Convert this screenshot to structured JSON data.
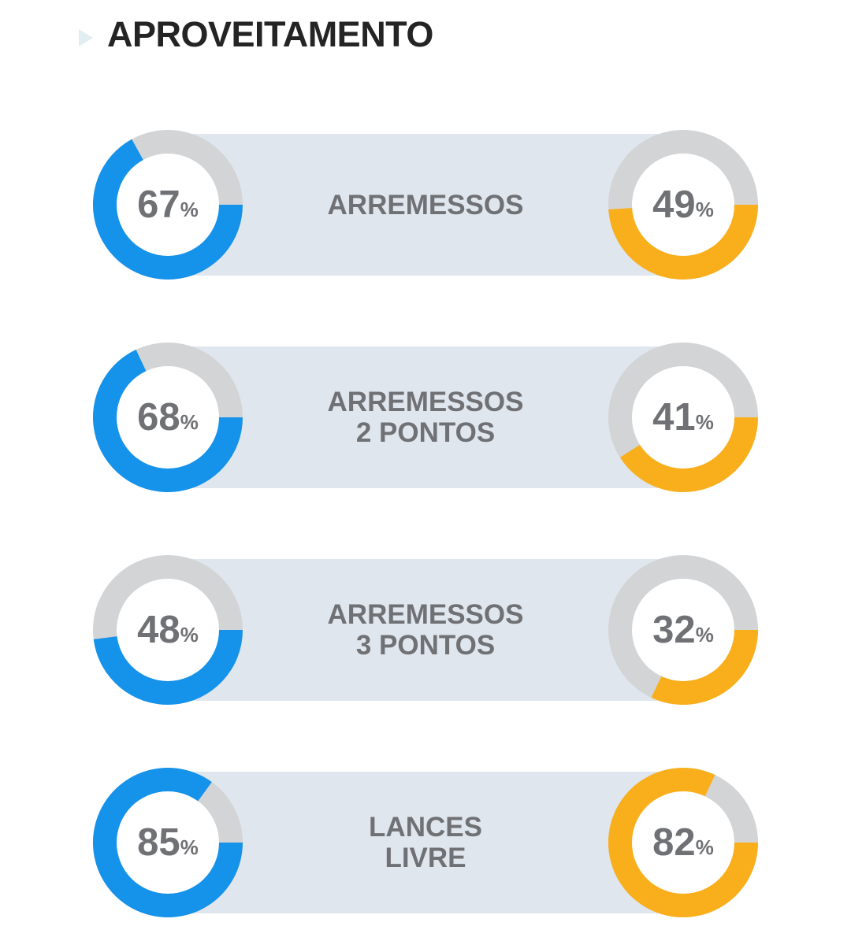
{
  "header": {
    "title": "APROVEITAMENTO"
  },
  "colors": {
    "team_a": "#1592e9",
    "team_b": "#f9af1c",
    "track": "#d3d4d6",
    "band": "#dfe6ee",
    "text": "#707174"
  },
  "chart_data": {
    "type": "donut",
    "unit": "%",
    "series": [
      {
        "color": "#1592e9"
      },
      {
        "color": "#f9af1c"
      }
    ],
    "categories": [
      {
        "label": "ARREMESSOS",
        "values": [
          67,
          49
        ],
        "display": [
          "67",
          "49"
        ]
      },
      {
        "label": "ARREMESSOS\n2 PONTOS",
        "values": [
          68,
          41
        ],
        "display": [
          "68",
          "41"
        ]
      },
      {
        "label": "ARREMESSOS\n3 PONTOS",
        "values": [
          48,
          32
        ],
        "display": [
          "48",
          "32"
        ]
      },
      {
        "label": "LANCES\nLIVRE",
        "values": [
          85,
          82
        ],
        "display": [
          "85",
          "82"
        ]
      }
    ],
    "percent_sign": "%"
  }
}
